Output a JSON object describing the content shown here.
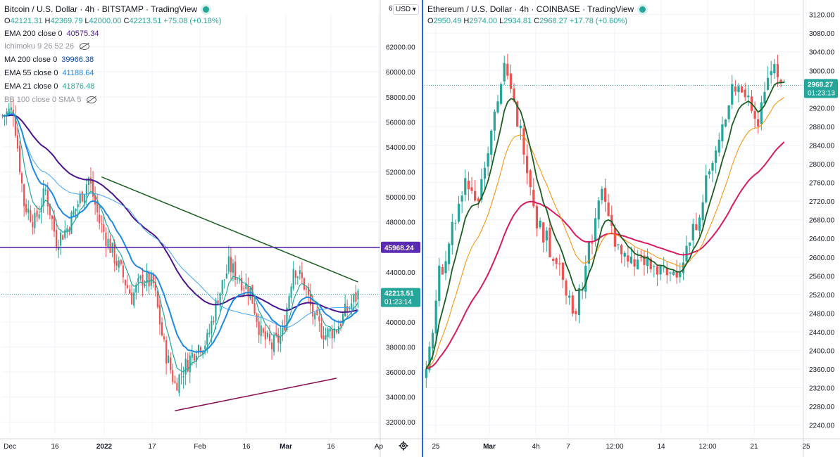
{
  "left": {
    "title": "Bitcoin / U.S. Dollar · 4h · BITSTAMP · TradingView",
    "ohlc": {
      "o": "42121.31",
      "h": "42369.79",
      "l": "42000.00",
      "c": "42213.51",
      "chg": "+75.08 (+0.18%)"
    },
    "currency": "USD",
    "scale_tick_cut": "6",
    "indicators": [
      {
        "label": "EMA 200 close 0",
        "value": "40575.34",
        "color": "#4a148c"
      },
      {
        "label": "Ichimoku 9 26 52 26",
        "value": "",
        "hidden": true
      },
      {
        "label": "MA 200 close 0",
        "value": "39966.38",
        "color": "#0d47a1"
      },
      {
        "label": "EMA 55 close 0",
        "value": "41188.64",
        "color": "#1e88e5"
      },
      {
        "label": "EMA 21 close 0",
        "value": "41876.48",
        "color": "#26a69a"
      },
      {
        "label": "BB 100 close 0 SMA 5",
        "value": "",
        "hidden": true
      }
    ],
    "price_ticks": [
      "62000.00",
      "60000.00",
      "58000.00",
      "56000.00",
      "54000.00",
      "52000.00",
      "50000.00",
      "48000.00",
      "44000.00",
      "40000.00",
      "38000.00",
      "36000.00",
      "34000.00",
      "32000.00"
    ],
    "time_ticks": [
      "Dec",
      "16",
      "2022",
      "17",
      "Feb",
      "16",
      "Mar",
      "16",
      "Ap"
    ],
    "level_label": "45968.24",
    "level_color": "#5b2bb4",
    "last_price": "42213.51",
    "countdown": "01:23:14"
  },
  "right": {
    "title": "Ethereum / U.S. Dollar · 4h · COINBASE · TradingView",
    "ohlc": {
      "o": "2950.49",
      "h": "2974.00",
      "l": "2934.81",
      "c": "2968.27",
      "chg": "+17.78 (+0.60%)"
    },
    "price_ticks": [
      "3120.00",
      "3080.00",
      "3040.00",
      "3000.00",
      "2920.00",
      "2880.00",
      "2840.00",
      "2800.00",
      "2760.00",
      "2720.00",
      "2680.00",
      "2640.00",
      "2600.00",
      "2560.00",
      "2520.00",
      "2480.00",
      "2440.00",
      "2400.00",
      "2360.00",
      "2320.00",
      "2280.00",
      "2240.00"
    ],
    "time_ticks": [
      "25",
      "Mar",
      "4h",
      "7",
      "12:00",
      "14",
      "12:00",
      "21",
      "25"
    ],
    "last_price": "2968.27",
    "countdown": "01:23:13"
  },
  "chart_data": [
    {
      "type": "candlestick",
      "title": "Bitcoin / U.S. Dollar · 4h · BITSTAMP",
      "timeframe": "4h",
      "ylim": [
        31000,
        63500
      ],
      "x_ticks": [
        "Dec",
        "16",
        "2022",
        "17",
        "Feb",
        "16",
        "Mar",
        "16",
        "Ap"
      ],
      "close_path": [
        [
          0,
          56500
        ],
        [
          5,
          57000
        ],
        [
          10,
          49500
        ],
        [
          15,
          48000
        ],
        [
          20,
          50500
        ],
        [
          25,
          46500
        ],
        [
          30,
          47500
        ],
        [
          35,
          49500
        ],
        [
          40,
          51500
        ],
        [
          45,
          48000
        ],
        [
          50,
          46000
        ],
        [
          55,
          44000
        ],
        [
          60,
          42000
        ],
        [
          65,
          43500
        ],
        [
          70,
          43000
        ],
        [
          75,
          38000
        ],
        [
          80,
          35000
        ],
        [
          85,
          36500
        ],
        [
          90,
          38000
        ],
        [
          95,
          38500
        ],
        [
          100,
          42000
        ],
        [
          105,
          44500
        ],
        [
          110,
          43500
        ],
        [
          115,
          42500
        ],
        [
          120,
          39000
        ],
        [
          125,
          38000
        ],
        [
          130,
          39000
        ],
        [
          135,
          44500
        ],
        [
          140,
          43000
        ],
        [
          145,
          40000
        ],
        [
          150,
          39000
        ],
        [
          155,
          39500
        ],
        [
          160,
          41000
        ],
        [
          165,
          42200
        ]
      ],
      "series": [
        {
          "name": "EMA 200 close 0",
          "last": 40575.34
        },
        {
          "name": "MA 200 close 0",
          "last": 39966.38
        },
        {
          "name": "EMA 55 close 0",
          "last": 41188.64
        },
        {
          "name": "EMA 21 close 0",
          "last": 41876.48
        }
      ],
      "horizontal_line": 45968.24,
      "last": 42213.51,
      "trendlines": [
        {
          "name": "descending",
          "from": [
            46,
            51600
          ],
          "to": [
            165,
            43200
          ],
          "color": "#1b5e20"
        },
        {
          "name": "ascending",
          "from": [
            80,
            32900
          ],
          "to": [
            155,
            35500
          ],
          "color": "#880e4f"
        }
      ]
    },
    {
      "type": "candlestick",
      "title": "Ethereum / U.S. Dollar · 4h · COINBASE",
      "timeframe": "4h",
      "ylim": [
        2220,
        3130
      ],
      "x_ticks": [
        "25",
        "Mar",
        "4h",
        "7",
        "12:00",
        "14",
        "12:00",
        "21",
        "25"
      ],
      "close_path": [
        [
          0,
          2340
        ],
        [
          4,
          2560
        ],
        [
          8,
          2660
        ],
        [
          12,
          2760
        ],
        [
          16,
          2730
        ],
        [
          20,
          2880
        ],
        [
          24,
          3000
        ],
        [
          27,
          2920
        ],
        [
          30,
          2840
        ],
        [
          34,
          2680
        ],
        [
          38,
          2620
        ],
        [
          42,
          2560
        ],
        [
          46,
          2480
        ],
        [
          50,
          2620
        ],
        [
          54,
          2740
        ],
        [
          58,
          2640
        ],
        [
          62,
          2580
        ],
        [
          66,
          2590
        ],
        [
          70,
          2570
        ],
        [
          74,
          2560
        ],
        [
          78,
          2580
        ],
        [
          82,
          2650
        ],
        [
          86,
          2760
        ],
        [
          90,
          2840
        ],
        [
          94,
          2970
        ],
        [
          98,
          2950
        ],
        [
          102,
          2900
        ],
        [
          106,
          3020
        ],
        [
          110,
          2968
        ]
      ],
      "series": [
        {
          "name": "EMA 200",
          "color": "#d81b60"
        },
        {
          "name": "EMA 55",
          "color": "#fb8c00"
        },
        {
          "name": "EMA 21",
          "color": "#1b5e20"
        }
      ],
      "last": 2968.27
    }
  ]
}
